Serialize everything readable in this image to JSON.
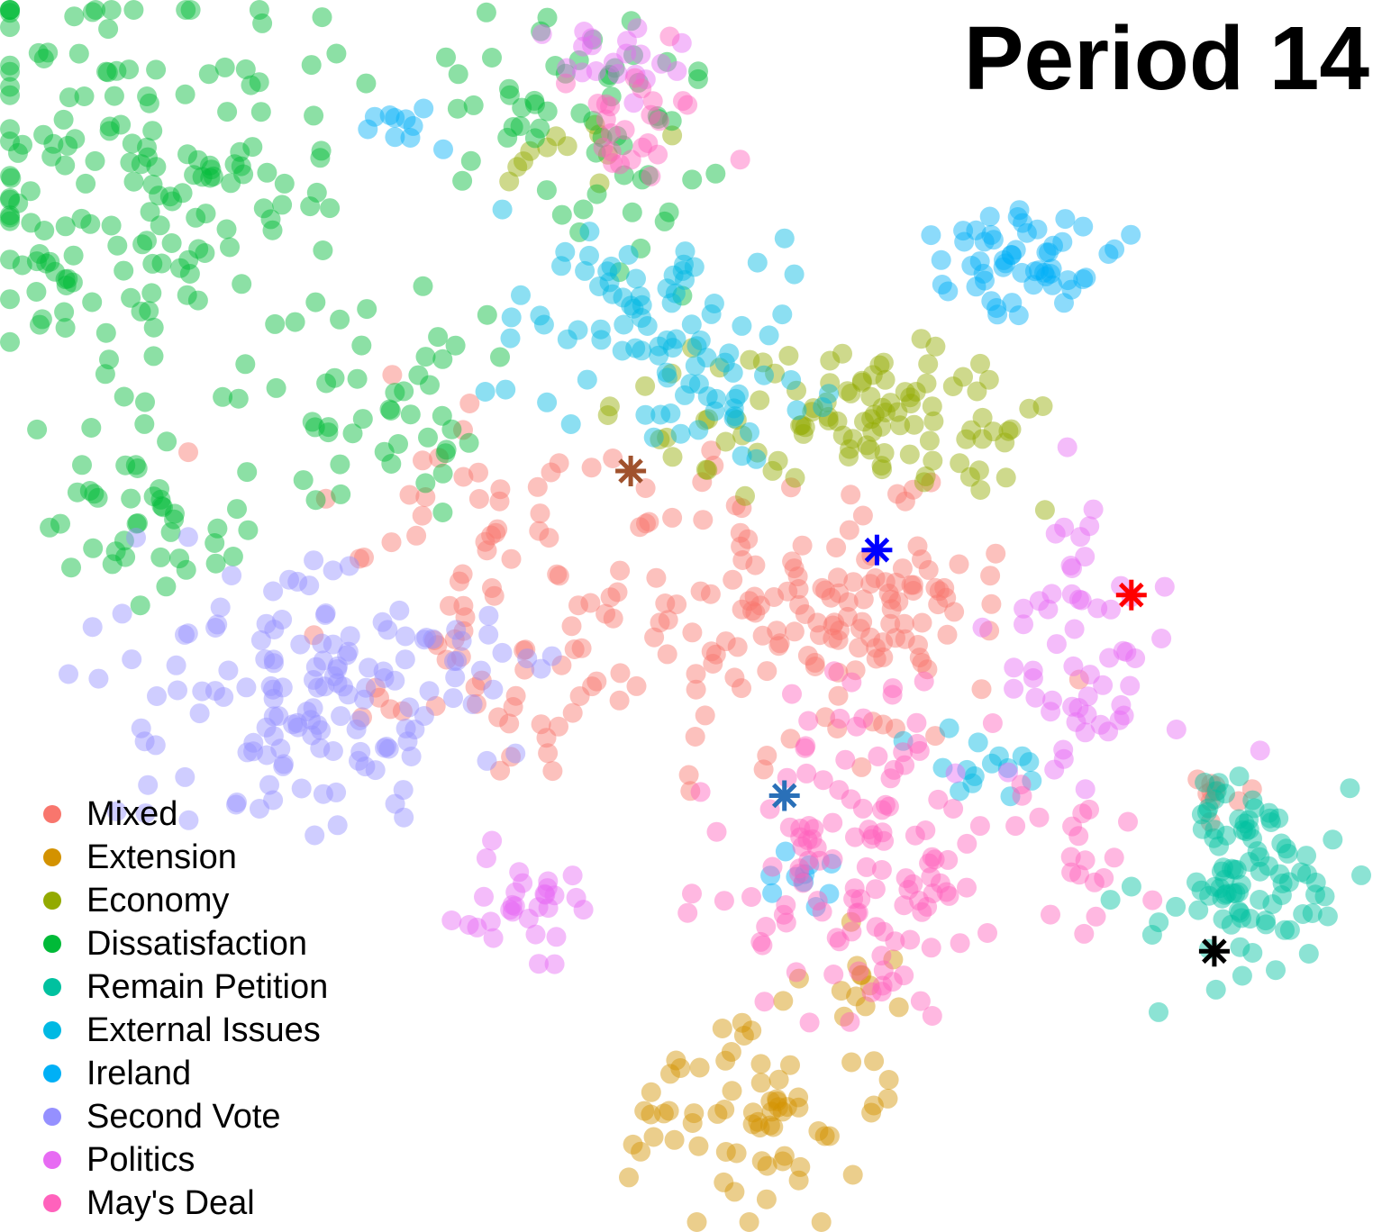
{
  "title": "Period 14",
  "chart_data": {
    "type": "scatter",
    "title": "Period 14",
    "xlabel": "",
    "ylabel": "",
    "axes_visible": false,
    "grid": false,
    "xlim": [
      0,
      100
    ],
    "ylim": [
      0,
      100
    ],
    "legend_position": "bottom-left",
    "point_opacity": 0.45,
    "series": [
      {
        "name": "Mixed",
        "color": "#F8766D",
        "clusters": [
          {
            "x": 57,
            "y": 50,
            "sx": 8,
            "sy": 6,
            "n": 130
          },
          {
            "x": 36,
            "y": 56,
            "sx": 6,
            "sy": 6,
            "n": 60
          },
          {
            "x": 37,
            "y": 43,
            "sx": 4,
            "sy": 3,
            "n": 30
          },
          {
            "x": 88,
            "y": 36,
            "sx": 2,
            "sy": 1.5,
            "n": 10
          },
          {
            "x": 66,
            "y": 51,
            "sx": 3,
            "sy": 2,
            "n": 20
          }
        ]
      },
      {
        "name": "Extension",
        "color": "#D39200",
        "clusters": [
          {
            "x": 54,
            "y": 9,
            "sx": 5,
            "sy": 4,
            "n": 70
          },
          {
            "x": 62,
            "y": 19,
            "sx": 2,
            "sy": 2,
            "n": 12
          }
        ]
      },
      {
        "name": "Economy",
        "color": "#93AA00",
        "clusters": [
          {
            "x": 66,
            "y": 66,
            "sx": 5,
            "sy": 3,
            "n": 80
          },
          {
            "x": 52,
            "y": 67,
            "sx": 5,
            "sy": 3,
            "n": 25
          },
          {
            "x": 40,
            "y": 88,
            "sx": 3,
            "sy": 2,
            "n": 12
          }
        ]
      },
      {
        "name": "Dissatisfaction",
        "color": "#00BA38",
        "clusters": [
          {
            "x": 10,
            "y": 85,
            "sx": 8,
            "sy": 9,
            "n": 180
          },
          {
            "x": 43,
            "y": 91,
            "sx": 5,
            "sy": 5,
            "n": 60
          },
          {
            "x": 10,
            "y": 58,
            "sx": 4,
            "sy": 3,
            "n": 40
          },
          {
            "x": 29,
            "y": 67,
            "sx": 4,
            "sy": 4,
            "n": 40
          }
        ]
      },
      {
        "name": "Remain Petition",
        "color": "#00C19F",
        "clusters": [
          {
            "x": 90,
            "y": 27,
            "sx": 4,
            "sy": 4,
            "n": 80
          },
          {
            "x": 90,
            "y": 35,
            "sx": 2,
            "sy": 1.5,
            "n": 15
          }
        ]
      },
      {
        "name": "External Issues",
        "color": "#00B9E3",
        "clusters": [
          {
            "x": 47,
            "y": 75,
            "sx": 5,
            "sy": 4,
            "n": 70
          },
          {
            "x": 53,
            "y": 68,
            "sx": 3,
            "sy": 3,
            "n": 25
          },
          {
            "x": 71,
            "y": 38,
            "sx": 2.5,
            "sy": 1.5,
            "n": 15
          }
        ]
      },
      {
        "name": "Ireland",
        "color": "#00B0F6",
        "clusters": [
          {
            "x": 74,
            "y": 79,
            "sx": 3.5,
            "sy": 2.5,
            "n": 55
          },
          {
            "x": 29,
            "y": 90,
            "sx": 2,
            "sy": 1.5,
            "n": 10
          },
          {
            "x": 58,
            "y": 28,
            "sx": 1.5,
            "sy": 1.5,
            "n": 10
          }
        ]
      },
      {
        "name": "Second Vote",
        "color": "#9590FF",
        "clusters": [
          {
            "x": 20,
            "y": 43,
            "sx": 6,
            "sy": 6,
            "n": 110
          },
          {
            "x": 30,
            "y": 45,
            "sx": 5,
            "sy": 4,
            "n": 40
          }
        ]
      },
      {
        "name": "Politics",
        "color": "#E76BF3",
        "clusters": [
          {
            "x": 79,
            "y": 48,
            "sx": 3.5,
            "sy": 6,
            "n": 60
          },
          {
            "x": 37,
            "y": 27,
            "sx": 3,
            "sy": 3,
            "n": 30
          },
          {
            "x": 45,
            "y": 96,
            "sx": 3,
            "sy": 2,
            "n": 20
          }
        ]
      },
      {
        "name": "May's Deal",
        "color": "#FF62BC",
        "clusters": [
          {
            "x": 63,
            "y": 30,
            "sx": 5,
            "sy": 7,
            "n": 130
          },
          {
            "x": 46,
            "y": 91,
            "sx": 2.5,
            "sy": 3,
            "n": 25
          },
          {
            "x": 80,
            "y": 30,
            "sx": 2,
            "sy": 2,
            "n": 15
          }
        ]
      }
    ],
    "markers": [
      {
        "x": 45.7,
        "y": 62.0,
        "color": "#A0522D",
        "symbol": "*"
      },
      {
        "x": 63.8,
        "y": 55.5,
        "color": "#0000FF",
        "symbol": "*"
      },
      {
        "x": 82.5,
        "y": 51.8,
        "color": "#FF0000",
        "symbol": "*"
      },
      {
        "x": 57.0,
        "y": 35.3,
        "color": "#2A70B8",
        "symbol": "*"
      },
      {
        "x": 88.6,
        "y": 22.5,
        "color": "#000000",
        "symbol": "*"
      }
    ]
  }
}
